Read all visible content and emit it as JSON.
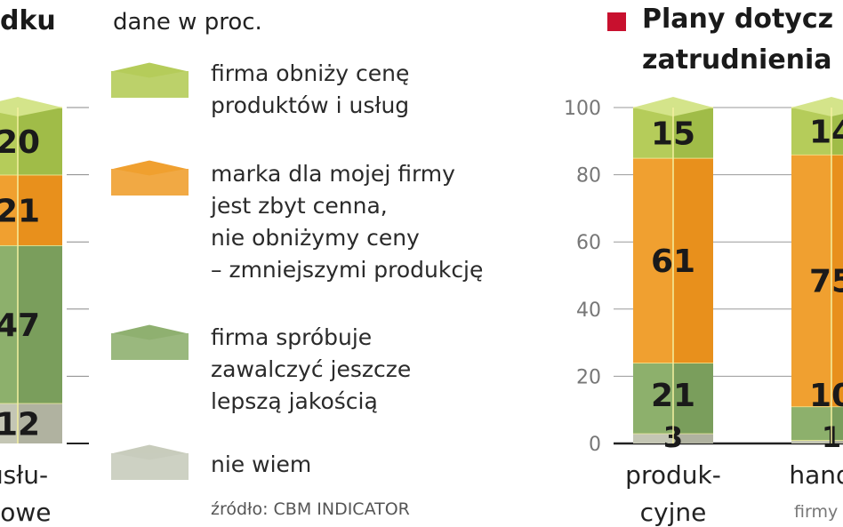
{
  "left_title_fragment": "dku",
  "units": "dane w proc.",
  "legend": [
    {
      "label": "firma obniży cenę produktów i usług",
      "lines": [
        "firma obniży cenę",
        "produktów i usług"
      ],
      "color": "#b5cc5a"
    },
    {
      "label": "marka dla mojej firmy jest zbyt cenna, nie obniżymy ceny – zmniejszymi produkcję",
      "lines": [
        "marka dla mojej firmy",
        "jest zbyt cenna,",
        "nie obniżymy ceny",
        "– zmniejszymi produkcję"
      ],
      "color": "#f0a030"
    },
    {
      "label": "firma spróbuje zawalczyć jeszcze lepszą jakością",
      "lines": [
        "firma spróbuje",
        "zawalczyć jeszcze",
        "lepszą jakością"
      ],
      "color": "#8fb070"
    },
    {
      "label": "nie wiem",
      "lines": [
        "nie wiem"
      ],
      "color": "#c8ccbc"
    }
  ],
  "source": "źródło: CBM INDICATOR",
  "right_title": {
    "line1": "Plany dotycz",
    "line2": "zatrudnienia",
    "marker_color": "#c8102e"
  },
  "chart_data": [
    {
      "type": "bar",
      "stacked": true,
      "categories": [
        "usłu-gowe"
      ],
      "category_lines": [
        [
          "usłu-",
          "gowe"
        ]
      ],
      "series": [
        {
          "name": "nie wiem",
          "values": [
            12
          ]
        },
        {
          "name": "firma spróbuje zawalczyć jeszcze lepszą jakością",
          "values": [
            47
          ]
        },
        {
          "name": "marka dla mojej firmy jest zbyt cenna",
          "values": [
            21
          ]
        },
        {
          "name": "firma obniży cenę produktów i usług",
          "values": [
            20
          ]
        }
      ],
      "ylim": [
        0,
        100
      ]
    },
    {
      "type": "bar",
      "stacked": true,
      "categories": [
        "produkcyjne",
        "handlowe"
      ],
      "category_lines": [
        [
          "produk-",
          "cyjne"
        ],
        [
          "handlo",
          ""
        ]
      ],
      "series": [
        {
          "name": "nie wiem",
          "values": [
            3,
            1
          ]
        },
        {
          "name": "firma spróbuje zawalczyć jeszcze lepszą jakością",
          "values": [
            21,
            10
          ]
        },
        {
          "name": "marka dla mojej firmy jest zbyt cenna",
          "values": [
            61,
            75
          ]
        },
        {
          "name": "firma obniży cenę produktów i usług",
          "values": [
            15,
            14
          ]
        }
      ],
      "yticks": [
        0,
        20,
        40,
        60,
        80,
        100
      ],
      "ylim": [
        0,
        100
      ],
      "xlabel": "firmy"
    }
  ]
}
